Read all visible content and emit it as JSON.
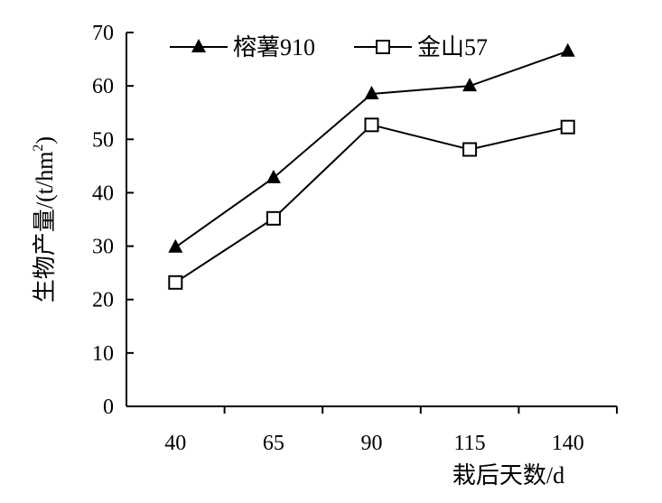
{
  "chart_data": {
    "type": "line",
    "title": "",
    "xlabel": "栽后天数/d",
    "ylabel": "生物产量/(t/hm",
    "ylabel_superscript": "2",
    "ylabel_close": ")",
    "categories": [
      "40",
      "65",
      "90",
      "115",
      "140"
    ],
    "ylim": [
      0,
      70
    ],
    "yticks": [
      "0",
      "10",
      "20",
      "30",
      "40",
      "50",
      "60",
      "70"
    ],
    "grid": false,
    "legend_position": "top",
    "series": [
      {
        "name": "榕薯910",
        "marker": "filled-triangle",
        "color": "#000000",
        "values": [
          29.8,
          42.8,
          58.5,
          60.0,
          66.5
        ]
      },
      {
        "name": "金山57",
        "marker": "open-square",
        "color": "#000000",
        "values": [
          23.2,
          35.2,
          52.7,
          48.1,
          52.3
        ]
      }
    ]
  }
}
